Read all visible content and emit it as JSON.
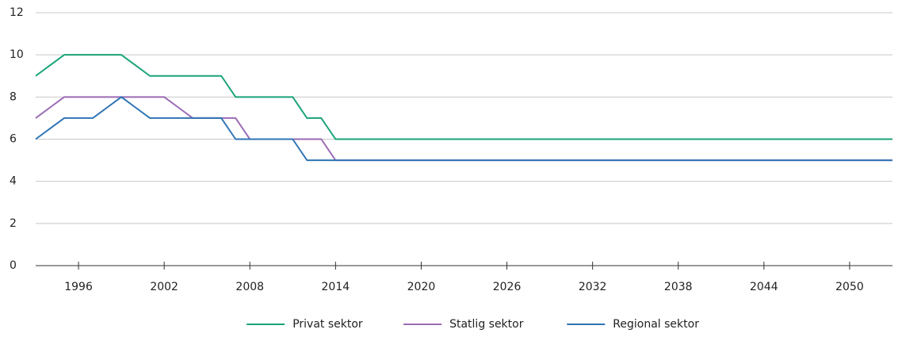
{
  "chart_data": {
    "type": "line",
    "x": [
      1993,
      1994,
      1995,
      1996,
      1997,
      1998,
      1999,
      2000,
      2001,
      2002,
      2003,
      2004,
      2005,
      2006,
      2007,
      2008,
      2009,
      2010,
      2011,
      2012,
      2013,
      2014,
      2015,
      2016,
      2053
    ],
    "series": [
      {
        "name": "Privat sektor",
        "color": "#1aa37a",
        "values": [
          9,
          9.5,
          10,
          10,
          10,
          10,
          10,
          9.5,
          9,
          9,
          9,
          9,
          9,
          9,
          8,
          8,
          8,
          8,
          8,
          7,
          7,
          6,
          6,
          6,
          6
        ]
      },
      {
        "name": "Statlig sektor",
        "color": "#9b6bb5",
        "values": [
          7,
          7.5,
          8,
          8,
          8,
          8,
          8,
          8,
          8,
          8,
          7.5,
          7,
          7,
          7,
          7,
          6,
          6,
          6,
          6,
          6,
          6,
          5,
          5,
          5,
          5
        ]
      },
      {
        "name": "Regional sektor",
        "color": "#2f75b5",
        "values": [
          6,
          6.5,
          7,
          7,
          7,
          7.5,
          8,
          7.5,
          7,
          7,
          7,
          7,
          7,
          7,
          6,
          6,
          6,
          6,
          6,
          5,
          5,
          5,
          5,
          5,
          5
        ]
      }
    ],
    "xlim": [
      1993,
      2053
    ],
    "xticks": [
      1996,
      2002,
      2008,
      2014,
      2020,
      2026,
      2032,
      2038,
      2044,
      2050
    ],
    "ylim": [
      0,
      12
    ],
    "yticks": [
      0,
      2,
      4,
      6,
      8,
      10,
      12
    ],
    "grid": true,
    "legend": "bottom"
  }
}
